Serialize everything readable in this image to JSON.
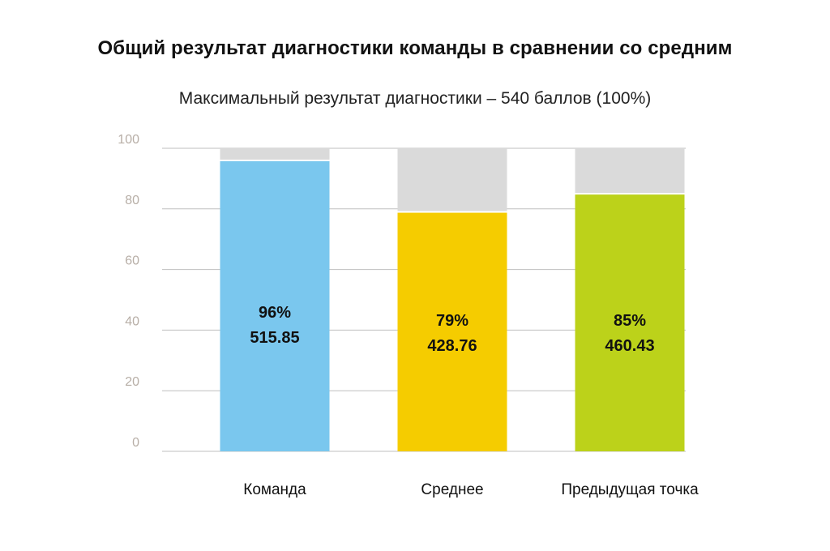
{
  "chart_data": {
    "type": "bar",
    "title": "Общий результат диагностики команды в сравнении со средним",
    "subtitle": "Максимальный результат диагностики – 540 баллов (100%)",
    "categories": [
      "Команда",
      "Среднее",
      "Предыдущая точка"
    ],
    "values": [
      96,
      79,
      85
    ],
    "percent_labels": [
      "96%",
      "79%",
      "85%"
    ],
    "score_labels": [
      "515.85",
      "428.76",
      "460.43"
    ],
    "ylim": [
      0,
      100
    ],
    "yticks": [
      "0",
      "20",
      "40",
      "60",
      "80",
      "100"
    ],
    "grid": true,
    "colors": [
      "#7ac7ee",
      "#f5cc00",
      "#bcd21a"
    ],
    "remainder_color": "#dadada",
    "grid_color": "#bfbfbf"
  }
}
